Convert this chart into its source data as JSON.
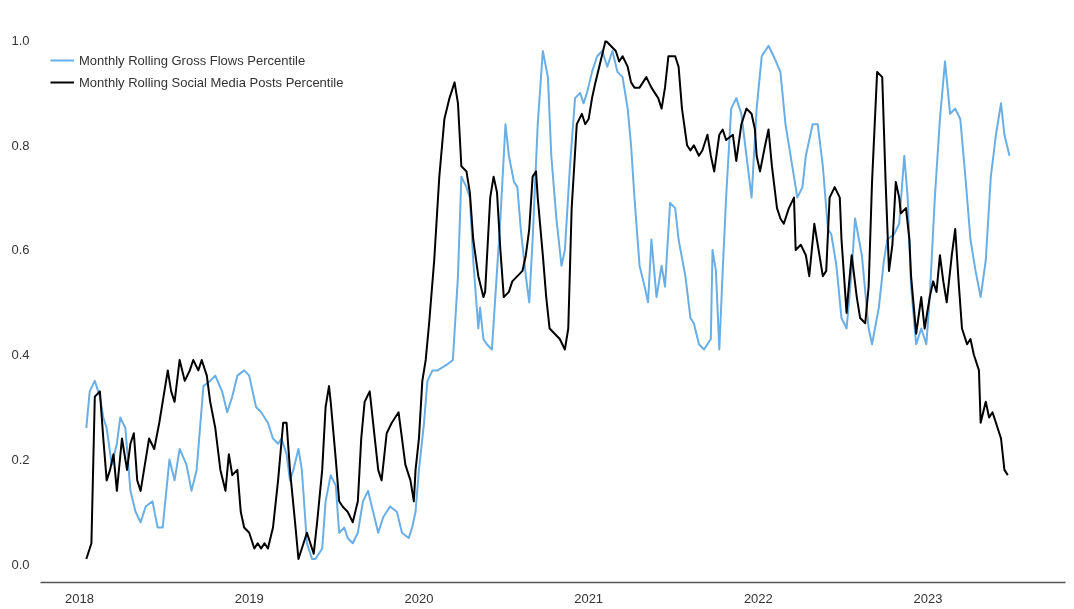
{
  "chart_data": {
    "type": "line",
    "xlim": [
      2017.77,
      2023.81
    ],
    "ylim": [
      -0.035,
      1.0
    ],
    "xticks": [
      2018,
      2019,
      2020,
      2021,
      2022,
      2023
    ],
    "yticks": [
      {
        "value": 0,
        "label": "0.0"
      },
      {
        "value": 0.2,
        "label": "0.2"
      },
      {
        "value": 0.4,
        "label": "0.4"
      },
      {
        "value": 0.6,
        "label": "0.6"
      },
      {
        "value": 0.8,
        "label": "0.8"
      },
      {
        "value": 1.0,
        "label": "1.0"
      }
    ],
    "grid": false,
    "legend": "top left",
    "line_style": "solid",
    "marker": "none",
    "series": [
      {
        "name": "Monthly Rolling Gross Flows Percentile",
        "color": "#6aaee6",
        "x": [
          2018.04,
          2018.06,
          2018.09,
          2018.12,
          2018.14,
          2018.16,
          2018.19,
          2018.22,
          2018.24,
          2018.27,
          2018.3,
          2018.33,
          2018.36,
          2018.39,
          2018.43,
          2018.46,
          2018.49,
          2018.53,
          2018.56,
          2018.59,
          2018.63,
          2018.66,
          2018.69,
          2018.73,
          2018.77,
          2018.8,
          2018.84,
          2018.87,
          2018.9,
          2018.93,
          2018.97,
          2019.0,
          2019.04,
          2019.07,
          2019.11,
          2019.14,
          2019.17,
          2019.19,
          2019.22,
          2019.24,
          2019.26,
          2019.29,
          2019.31,
          2019.34,
          2019.37,
          2019.39,
          2019.43,
          2019.45,
          2019.48,
          2019.51,
          2019.53,
          2019.56,
          2019.58,
          2019.61,
          2019.64,
          2019.67,
          2019.7,
          2019.73,
          2019.76,
          2019.79,
          2019.83,
          2019.87,
          2019.9,
          2019.94,
          2019.96,
          2019.98,
          2020.0,
          2020.03,
          2020.05,
          2020.08,
          2020.11,
          2020.16,
          2020.2,
          2020.23,
          2020.25,
          2020.28,
          2020.3,
          2020.32,
          2020.35,
          2020.36,
          2020.38,
          2020.4,
          2020.43,
          2020.45,
          2020.48,
          2020.51,
          2020.53,
          2020.56,
          2020.58,
          2020.6,
          2020.63,
          2020.65,
          2020.67,
          2020.7,
          2020.73,
          2020.76,
          2020.78,
          2020.81,
          2020.84,
          2020.86,
          2020.89,
          2020.92,
          2020.95,
          2020.97,
          2020.99,
          2021.02,
          2021.05,
          2021.08,
          2021.11,
          2021.14,
          2021.17,
          2021.2,
          2021.23,
          2021.25,
          2021.27,
          2021.3,
          2021.33,
          2021.35,
          2021.37,
          2021.4,
          2021.43,
          2021.45,
          2021.48,
          2021.51,
          2021.53,
          2021.57,
          2021.6,
          2021.62,
          2021.65,
          2021.68,
          2021.72,
          2021.73,
          2021.75,
          2021.77,
          2021.79,
          2021.81,
          2021.84,
          2021.87,
          2021.9,
          2021.93,
          2021.96,
          2021.99,
          2022.02,
          2022.06,
          2022.09,
          2022.13,
          2022.16,
          2022.2,
          2022.23,
          2022.26,
          2022.28,
          2022.32,
          2022.35,
          2022.38,
          2022.41,
          2022.43,
          2022.46,
          2022.49,
          2022.52,
          2022.55,
          2022.57,
          2022.61,
          2022.65,
          2022.67,
          2022.71,
          2022.74,
          2022.76,
          2022.8,
          2022.83,
          2022.86,
          2022.88,
          2022.9,
          2022.93,
          2022.96,
          2022.99,
          2023.01,
          2023.04,
          2023.07,
          2023.1,
          2023.13,
          2023.16,
          2023.19,
          2023.22,
          2023.25,
          2023.28,
          2023.31,
          2023.34,
          2023.37,
          2023.4,
          2023.43,
          2023.45,
          2023.48
        ],
        "values": [
          0.26,
          0.33,
          0.35,
          0.32,
          0.28,
          0.26,
          0.19,
          0.23,
          0.28,
          0.26,
          0.14,
          0.1,
          0.08,
          0.11,
          0.12,
          0.07,
          0.07,
          0.2,
          0.16,
          0.22,
          0.19,
          0.14,
          0.18,
          0.34,
          0.35,
          0.36,
          0.33,
          0.29,
          0.32,
          0.36,
          0.37,
          0.36,
          0.3,
          0.29,
          0.27,
          0.24,
          0.23,
          0.24,
          0.21,
          0.16,
          0.18,
          0.22,
          0.18,
          0.04,
          0.01,
          0.01,
          0.03,
          0.12,
          0.17,
          0.15,
          0.06,
          0.07,
          0.05,
          0.04,
          0.06,
          0.12,
          0.14,
          0.1,
          0.06,
          0.09,
          0.11,
          0.1,
          0.06,
          0.05,
          0.07,
          0.1,
          0.18,
          0.27,
          0.35,
          0.37,
          0.37,
          0.38,
          0.39,
          0.55,
          0.74,
          0.72,
          0.7,
          0.58,
          0.45,
          0.49,
          0.43,
          0.42,
          0.41,
          0.51,
          0.66,
          0.84,
          0.78,
          0.73,
          0.72,
          0.64,
          0.55,
          0.5,
          0.62,
          0.84,
          0.98,
          0.93,
          0.78,
          0.66,
          0.57,
          0.6,
          0.76,
          0.89,
          0.9,
          0.88,
          0.9,
          0.94,
          0.97,
          0.98,
          0.95,
          0.98,
          0.94,
          0.93,
          0.87,
          0.8,
          0.7,
          0.57,
          0.53,
          0.5,
          0.62,
          0.51,
          0.57,
          0.53,
          0.69,
          0.68,
          0.62,
          0.55,
          0.47,
          0.46,
          0.42,
          0.41,
          0.43,
          0.6,
          0.56,
          0.41,
          0.56,
          0.7,
          0.87,
          0.89,
          0.86,
          0.78,
          0.7,
          0.87,
          0.97,
          0.99,
          0.97,
          0.94,
          0.84,
          0.76,
          0.7,
          0.72,
          0.78,
          0.84,
          0.84,
          0.76,
          0.64,
          0.63,
          0.57,
          0.47,
          0.45,
          0.56,
          0.66,
          0.59,
          0.45,
          0.42,
          0.49,
          0.58,
          0.62,
          0.63,
          0.65,
          0.78,
          0.7,
          0.53,
          0.42,
          0.45,
          0.42,
          0.51,
          0.7,
          0.85,
          0.96,
          0.86,
          0.87,
          0.85,
          0.74,
          0.62,
          0.56,
          0.51,
          0.58,
          0.74,
          0.82,
          0.88,
          0.82,
          0.78
        ]
      },
      {
        "name": "Monthly Rolling Social Media Posts Percentile",
        "color": "#000000",
        "x": [
          2018.04,
          2018.07,
          2018.09,
          2018.12,
          2018.14,
          2018.16,
          2018.18,
          2018.2,
          2018.22,
          2018.25,
          2018.28,
          2018.3,
          2018.32,
          2018.34,
          2018.36,
          2018.39,
          2018.41,
          2018.44,
          2018.47,
          2018.49,
          2018.52,
          2018.54,
          2018.56,
          2018.59,
          2018.62,
          2018.65,
          2018.67,
          2018.7,
          2018.72,
          2018.75,
          2018.77,
          2018.8,
          2018.83,
          2018.86,
          2018.88,
          2018.9,
          2018.93,
          2018.95,
          2018.97,
          2019.0,
          2019.03,
          2019.05,
          2019.07,
          2019.09,
          2019.11,
          2019.14,
          2019.17,
          2019.2,
          2019.22,
          2019.24,
          2019.27,
          2019.29,
          2019.31,
          2019.34,
          2019.36,
          2019.38,
          2019.4,
          2019.43,
          2019.45,
          2019.47,
          2019.48,
          2019.51,
          2019.53,
          2019.55,
          2019.58,
          2019.61,
          2019.64,
          2019.66,
          2019.68,
          2019.71,
          2019.74,
          2019.76,
          2019.78,
          2019.81,
          2019.84,
          2019.88,
          2019.9,
          2019.92,
          2019.95,
          2019.97,
          2019.98,
          2020.0,
          2020.02,
          2020.04,
          2020.06,
          2020.09,
          2020.12,
          2020.15,
          2020.18,
          2020.21,
          2020.23,
          2020.25,
          2020.28,
          2020.3,
          2020.32,
          2020.35,
          2020.38,
          2020.39,
          2020.42,
          2020.44,
          2020.46,
          2020.48,
          2020.5,
          2020.53,
          2020.55,
          2020.58,
          2020.61,
          2020.63,
          2020.65,
          2020.67,
          2020.69,
          2020.7,
          2020.73,
          2020.75,
          2020.77,
          2020.8,
          2020.83,
          2020.86,
          2020.88,
          2020.9,
          2020.93,
          2020.96,
          2020.98,
          2021.0,
          2021.02,
          2021.04,
          2021.07,
          2021.1,
          2021.13,
          2021.16,
          2021.18,
          2021.2,
          2021.23,
          2021.25,
          2021.27,
          2021.3,
          2021.32,
          2021.34,
          2021.37,
          2021.41,
          2021.43,
          2021.45,
          2021.47,
          2021.51,
          2021.53,
          2021.55,
          2021.58,
          2021.6,
          2021.62,
          2021.65,
          2021.67,
          2021.7,
          2021.72,
          2021.74,
          2021.77,
          2021.79,
          2021.81,
          2021.85,
          2021.87,
          2021.9,
          2021.93,
          2021.96,
          2021.98,
          2021.99,
          2022.01,
          2022.04,
          2022.06,
          2022.08,
          2022.11,
          2022.13,
          2022.15,
          2022.18,
          2022.21,
          2022.22,
          2022.25,
          2022.28,
          2022.3,
          2022.33,
          2022.35,
          2022.38,
          2022.4,
          2022.42,
          2022.45,
          2022.48,
          2022.49,
          2022.52,
          2022.53,
          2022.55,
          2022.58,
          2022.6,
          2022.63,
          2022.65,
          2022.67,
          2022.7,
          2022.73,
          2022.75,
          2022.77,
          2022.79,
          2022.81,
          2022.83,
          2022.84,
          2022.87,
          2022.89,
          2022.9,
          2022.93,
          2022.96,
          2022.98,
          2023.01,
          2023.03,
          2023.05,
          2023.07,
          2023.09,
          2023.11,
          2023.14,
          2023.16,
          2023.18,
          2023.2,
          2023.23,
          2023.25,
          2023.27,
          2023.3,
          2023.31,
          2023.34,
          2023.36,
          2023.38,
          2023.41,
          2023.43,
          2023.45,
          2023.47
        ],
        "values": [
          0.01,
          0.04,
          0.32,
          0.33,
          0.24,
          0.16,
          0.18,
          0.21,
          0.14,
          0.24,
          0.18,
          0.23,
          0.25,
          0.16,
          0.14,
          0.2,
          0.24,
          0.22,
          0.27,
          0.31,
          0.37,
          0.33,
          0.31,
          0.39,
          0.35,
          0.37,
          0.39,
          0.37,
          0.39,
          0.36,
          0.31,
          0.26,
          0.18,
          0.14,
          0.21,
          0.17,
          0.18,
          0.1,
          0.07,
          0.06,
          0.03,
          0.04,
          0.03,
          0.04,
          0.03,
          0.07,
          0.16,
          0.27,
          0.27,
          0.18,
          0.08,
          0.01,
          0.03,
          0.06,
          0.04,
          0.02,
          0.08,
          0.18,
          0.3,
          0.34,
          0.31,
          0.2,
          0.12,
          0.11,
          0.1,
          0.08,
          0.12,
          0.24,
          0.31,
          0.33,
          0.24,
          0.18,
          0.16,
          0.25,
          0.27,
          0.29,
          0.24,
          0.19,
          0.16,
          0.12,
          0.18,
          0.24,
          0.35,
          0.39,
          0.46,
          0.58,
          0.74,
          0.85,
          0.89,
          0.92,
          0.88,
          0.76,
          0.75,
          0.71,
          0.62,
          0.55,
          0.51,
          0.52,
          0.7,
          0.74,
          0.71,
          0.6,
          0.51,
          0.52,
          0.54,
          0.55,
          0.56,
          0.59,
          0.64,
          0.74,
          0.75,
          0.7,
          0.59,
          0.51,
          0.45,
          0.44,
          0.43,
          0.41,
          0.45,
          0.68,
          0.84,
          0.86,
          0.84,
          0.85,
          0.89,
          0.92,
          0.96,
          1.0,
          0.99,
          0.98,
          0.96,
          0.97,
          0.95,
          0.92,
          0.91,
          0.91,
          0.92,
          0.93,
          0.91,
          0.89,
          0.87,
          0.91,
          0.97,
          0.97,
          0.95,
          0.87,
          0.8,
          0.79,
          0.8,
          0.78,
          0.79,
          0.82,
          0.78,
          0.75,
          0.82,
          0.83,
          0.81,
          0.82,
          0.77,
          0.84,
          0.87,
          0.86,
          0.83,
          0.78,
          0.75,
          0.8,
          0.83,
          0.76,
          0.68,
          0.66,
          0.65,
          0.68,
          0.7,
          0.6,
          0.61,
          0.59,
          0.55,
          0.65,
          0.61,
          0.55,
          0.56,
          0.7,
          0.72,
          0.7,
          0.62,
          0.48,
          0.52,
          0.59,
          0.51,
          0.47,
          0.46,
          0.53,
          0.73,
          0.94,
          0.93,
          0.73,
          0.56,
          0.61,
          0.73,
          0.7,
          0.67,
          0.68,
          0.62,
          0.55,
          0.44,
          0.51,
          0.45,
          0.51,
          0.54,
          0.52,
          0.59,
          0.54,
          0.5,
          0.59,
          0.64,
          0.54,
          0.45,
          0.42,
          0.43,
          0.4,
          0.37,
          0.27,
          0.31,
          0.28,
          0.29,
          0.26,
          0.24,
          0.18,
          0.17
        ]
      }
    ]
  }
}
